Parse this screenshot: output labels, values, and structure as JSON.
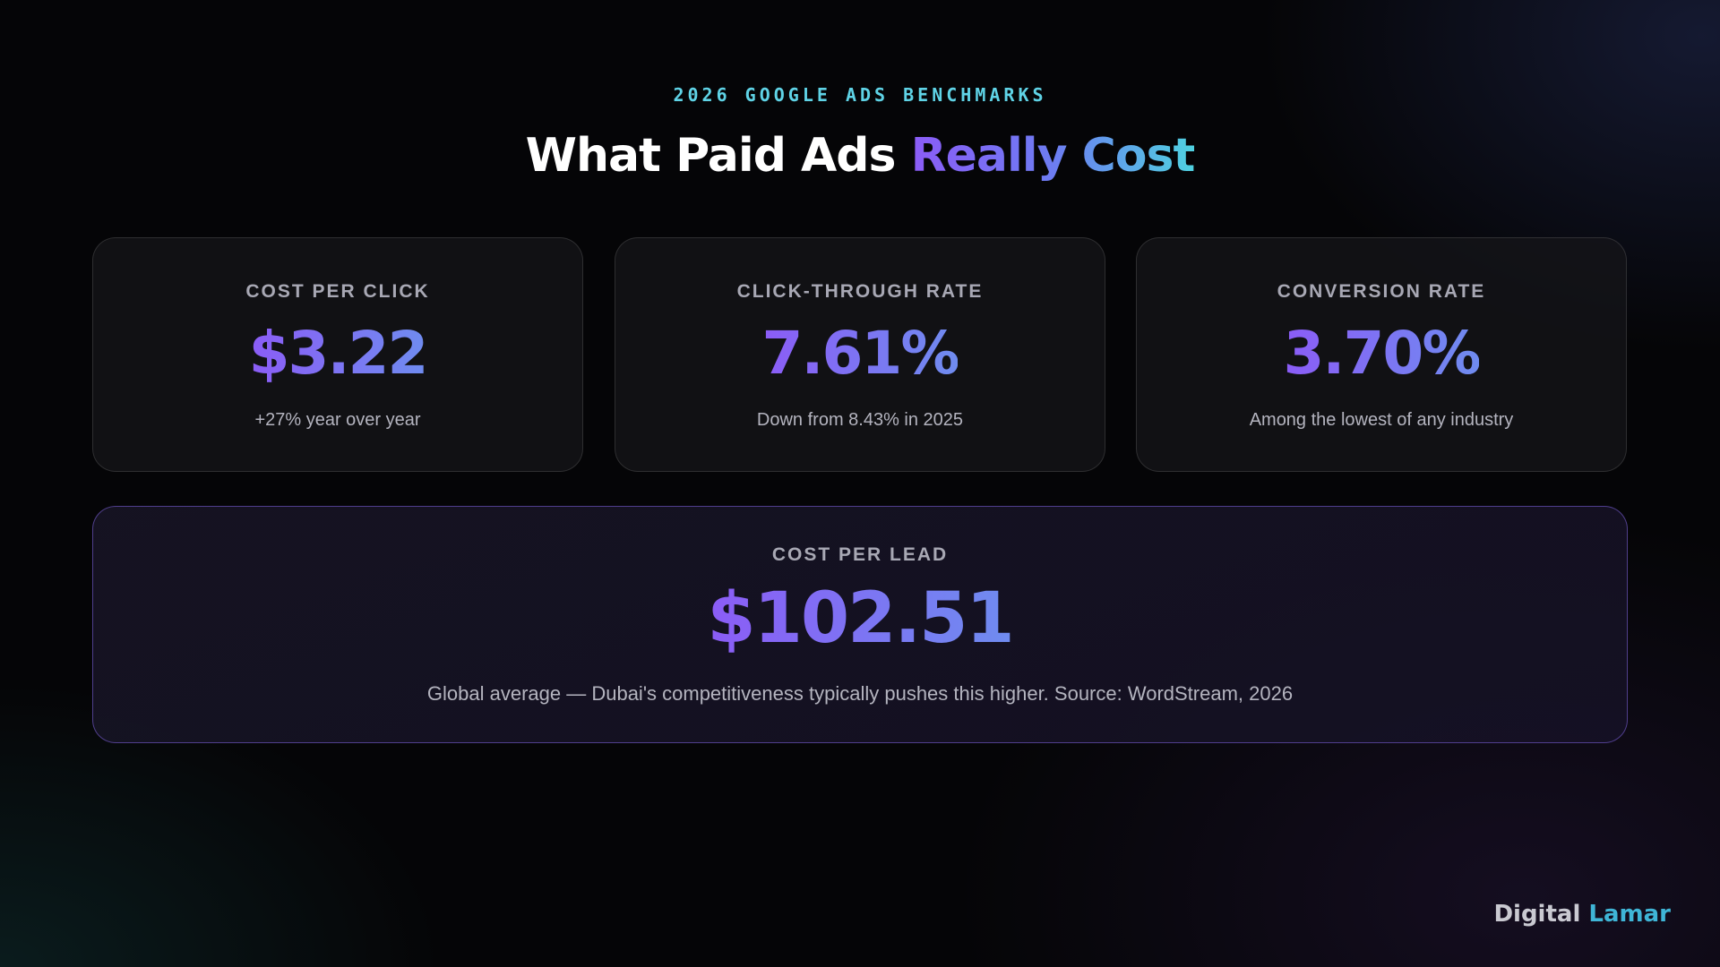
{
  "header": {
    "eyebrow": "2026 GOOGLE ADS BENCHMARKS",
    "title": "What Paid Ads",
    "title_accent": "Really Cost"
  },
  "cards": [
    {
      "label": "COST PER CLICK",
      "value": "$3.22",
      "note": "+27% year over year"
    },
    {
      "label": "CLICK-THROUGH RATE",
      "value": "7.61%",
      "note": "Down from 8.43% in 2025"
    },
    {
      "label": "CONVERSION RATE",
      "value": "3.70%",
      "note": "Among the lowest of any industry"
    }
  ],
  "featured": {
    "label": "COST PER LEAD",
    "value": "$102.51",
    "note": "Global average — Dubai's competitiveness typically pushes this higher. Source: WordStream, 2026"
  },
  "brand": {
    "name": "Digital",
    "accent": "Lamar"
  }
}
